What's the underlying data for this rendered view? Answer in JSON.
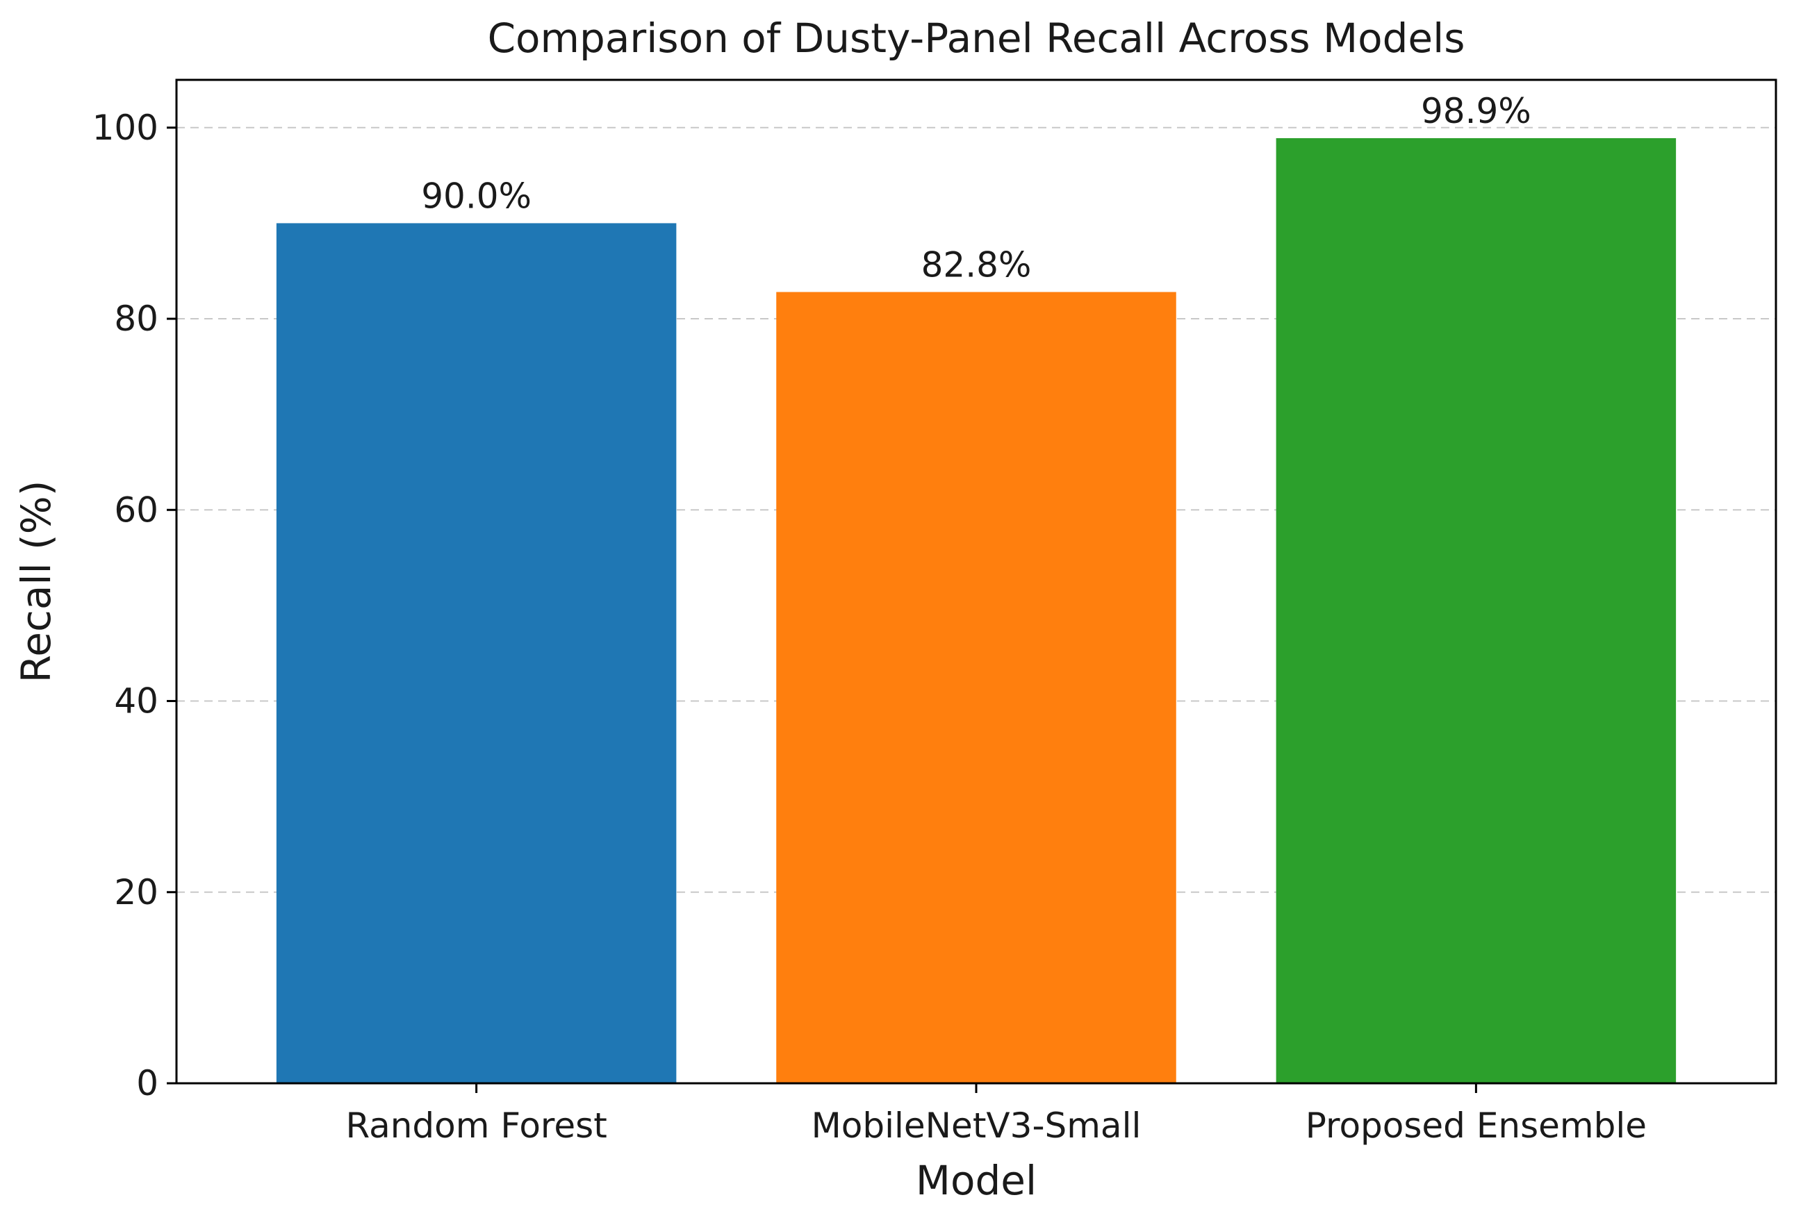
{
  "chart_data": {
    "type": "bar",
    "title": "Comparison of Dusty-Panel Recall Across Models",
    "xlabel": "Model",
    "ylabel": "Recall (%)",
    "categories": [
      "Random Forest",
      "MobileNetV3-Small",
      "Proposed Ensemble"
    ],
    "values": [
      90.0,
      82.8,
      98.9
    ],
    "value_labels": [
      "90.0%",
      "82.8%",
      "98.9%"
    ],
    "colors": [
      "#1f77b4",
      "#ff7f0e",
      "#2ca02c"
    ],
    "ylim": [
      0,
      105
    ],
    "yticks": [
      0,
      20,
      40,
      60,
      80,
      100
    ],
    "grid": "y-dashed",
    "legend": "none"
  }
}
